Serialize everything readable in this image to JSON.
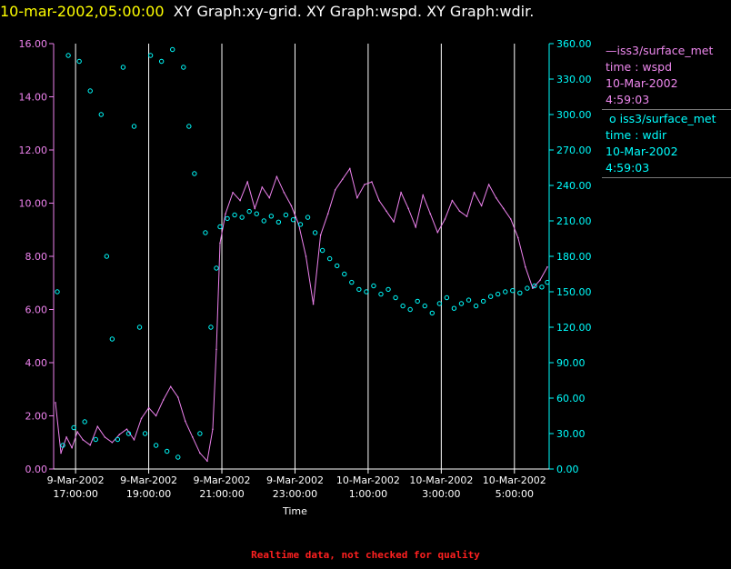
{
  "header": {
    "timestamp": "10-mar-2002,05:00:00",
    "titles": "XY Graph:xy-grid.  XY Graph:wspd.  XY Graph:wdir."
  },
  "legend": [
    {
      "marker": "line",
      "label": "iss3/surface_met",
      "line2": "time : wspd",
      "line3": "10-Mar-2002",
      "line4": "4:59:03"
    },
    {
      "marker": "o",
      "label": "iss3/surface_met",
      "line2": "time : wdir",
      "line3": "10-Mar-2002",
      "line4": "4:59:03"
    }
  ],
  "footer": "Realtime data, not checked for quality",
  "colors": {
    "wspd": "#ee82ee",
    "wdir": "#00ffff",
    "grid": "#ffffff",
    "header_ts": "#ffff00",
    "footer": "#ff2020"
  },
  "chart_data": {
    "type": "line",
    "xlabel": "Time",
    "x_ticks": [
      {
        "date": "9-Mar-2002",
        "time": "17:00:00",
        "hour": 17
      },
      {
        "date": "9-Mar-2002",
        "time": "19:00:00",
        "hour": 19
      },
      {
        "date": "9-Mar-2002",
        "time": "21:00:00",
        "hour": 21
      },
      {
        "date": "9-Mar-2002",
        "time": "23:00:00",
        "hour": 23
      },
      {
        "date": "10-Mar-2002",
        "time": "1:00:00",
        "hour": 25
      },
      {
        "date": "10-Mar-2002",
        "time": "3:00:00",
        "hour": 27
      },
      {
        "date": "10-Mar-2002",
        "time": "5:00:00",
        "hour": 29
      }
    ],
    "xlim": [
      16.4,
      29.95
    ],
    "y_left": {
      "ticks": [
        "0.00",
        "2.00",
        "4.00",
        "6.00",
        "8.00",
        "10.00",
        "12.00",
        "14.00",
        "16.00"
      ],
      "lim": [
        0,
        16
      ]
    },
    "y_right": {
      "ticks": [
        "0.00",
        "30.00",
        "60.00",
        "90.00",
        "120.00",
        "150.00",
        "180.00",
        "210.00",
        "240.00",
        "270.00",
        "300.00",
        "330.00",
        "360.00"
      ],
      "lim": [
        0,
        360
      ]
    },
    "series": [
      {
        "key": "wspd",
        "axis": "left",
        "style": "line",
        "x": [
          16.45,
          16.6,
          16.75,
          16.9,
          17.05,
          17.2,
          17.4,
          17.6,
          17.8,
          18.0,
          18.2,
          18.4,
          18.6,
          18.8,
          19.0,
          19.2,
          19.4,
          19.6,
          19.8,
          20.0,
          20.2,
          20.4,
          20.6,
          20.75,
          20.85,
          20.95,
          21.1,
          21.3,
          21.5,
          21.7,
          21.9,
          22.1,
          22.3,
          22.5,
          22.7,
          22.9,
          23.1,
          23.3,
          23.5,
          23.7,
          23.9,
          24.1,
          24.3,
          24.5,
          24.7,
          24.9,
          25.1,
          25.3,
          25.5,
          25.7,
          25.9,
          26.1,
          26.3,
          26.5,
          26.7,
          26.9,
          27.1,
          27.3,
          27.5,
          27.7,
          27.9,
          28.1,
          28.3,
          28.5,
          28.7,
          28.9,
          29.1,
          29.3,
          29.5,
          29.7,
          29.9
        ],
        "y": [
          2.5,
          0.6,
          1.2,
          0.8,
          1.4,
          1.1,
          0.9,
          1.6,
          1.2,
          1.0,
          1.3,
          1.5,
          1.1,
          1.9,
          2.3,
          2.0,
          2.6,
          3.1,
          2.7,
          1.8,
          1.2,
          0.6,
          0.3,
          1.5,
          4.5,
          8.5,
          9.6,
          10.4,
          10.1,
          10.8,
          9.8,
          10.6,
          10.2,
          11.0,
          10.4,
          9.9,
          9.2,
          8.0,
          6.2,
          8.8,
          9.6,
          10.5,
          10.9,
          11.3,
          10.2,
          10.7,
          10.8,
          10.1,
          9.7,
          9.3,
          10.4,
          9.8,
          9.1,
          10.3,
          9.6,
          8.9,
          9.4,
          10.1,
          9.7,
          9.5,
          10.4,
          9.9,
          10.7,
          10.2,
          9.8,
          9.4,
          8.7,
          7.6,
          6.8,
          7.1,
          7.6
        ]
      },
      {
        "key": "wdir",
        "axis": "right",
        "style": "points",
        "x": [
          16.5,
          16.65,
          16.8,
          16.95,
          17.1,
          17.25,
          17.4,
          17.55,
          17.7,
          17.85,
          18.0,
          18.15,
          18.3,
          18.45,
          18.6,
          18.75,
          18.9,
          19.05,
          19.2,
          19.35,
          19.5,
          19.65,
          19.8,
          19.95,
          20.1,
          20.25,
          20.4,
          20.55,
          20.7,
          20.85,
          20.95,
          21.15,
          21.35,
          21.55,
          21.75,
          21.95,
          22.15,
          22.35,
          22.55,
          22.75,
          22.95,
          23.15,
          23.35,
          23.55,
          23.75,
          23.95,
          24.15,
          24.35,
          24.55,
          24.75,
          24.95,
          25.15,
          25.35,
          25.55,
          25.75,
          25.95,
          26.15,
          26.35,
          26.55,
          26.75,
          26.95,
          27.15,
          27.35,
          27.55,
          27.75,
          27.95,
          28.15,
          28.35,
          28.55,
          28.75,
          28.95,
          29.15,
          29.35,
          29.55,
          29.75,
          29.9
        ],
        "y": [
          150,
          20,
          350,
          35,
          345,
          40,
          320,
          25,
          300,
          180,
          110,
          25,
          340,
          30,
          290,
          120,
          30,
          350,
          20,
          345,
          15,
          355,
          10,
          340,
          290,
          250,
          30,
          200,
          120,
          170,
          205,
          212,
          215,
          213,
          218,
          216,
          210,
          214,
          209,
          215,
          211,
          207,
          213,
          200,
          185,
          178,
          172,
          165,
          158,
          152,
          150,
          155,
          148,
          152,
          145,
          138,
          135,
          142,
          138,
          132,
          140,
          145,
          136,
          140,
          143,
          138,
          142,
          146,
          148,
          150,
          151,
          149,
          153,
          155,
          154,
          158
        ]
      }
    ]
  }
}
